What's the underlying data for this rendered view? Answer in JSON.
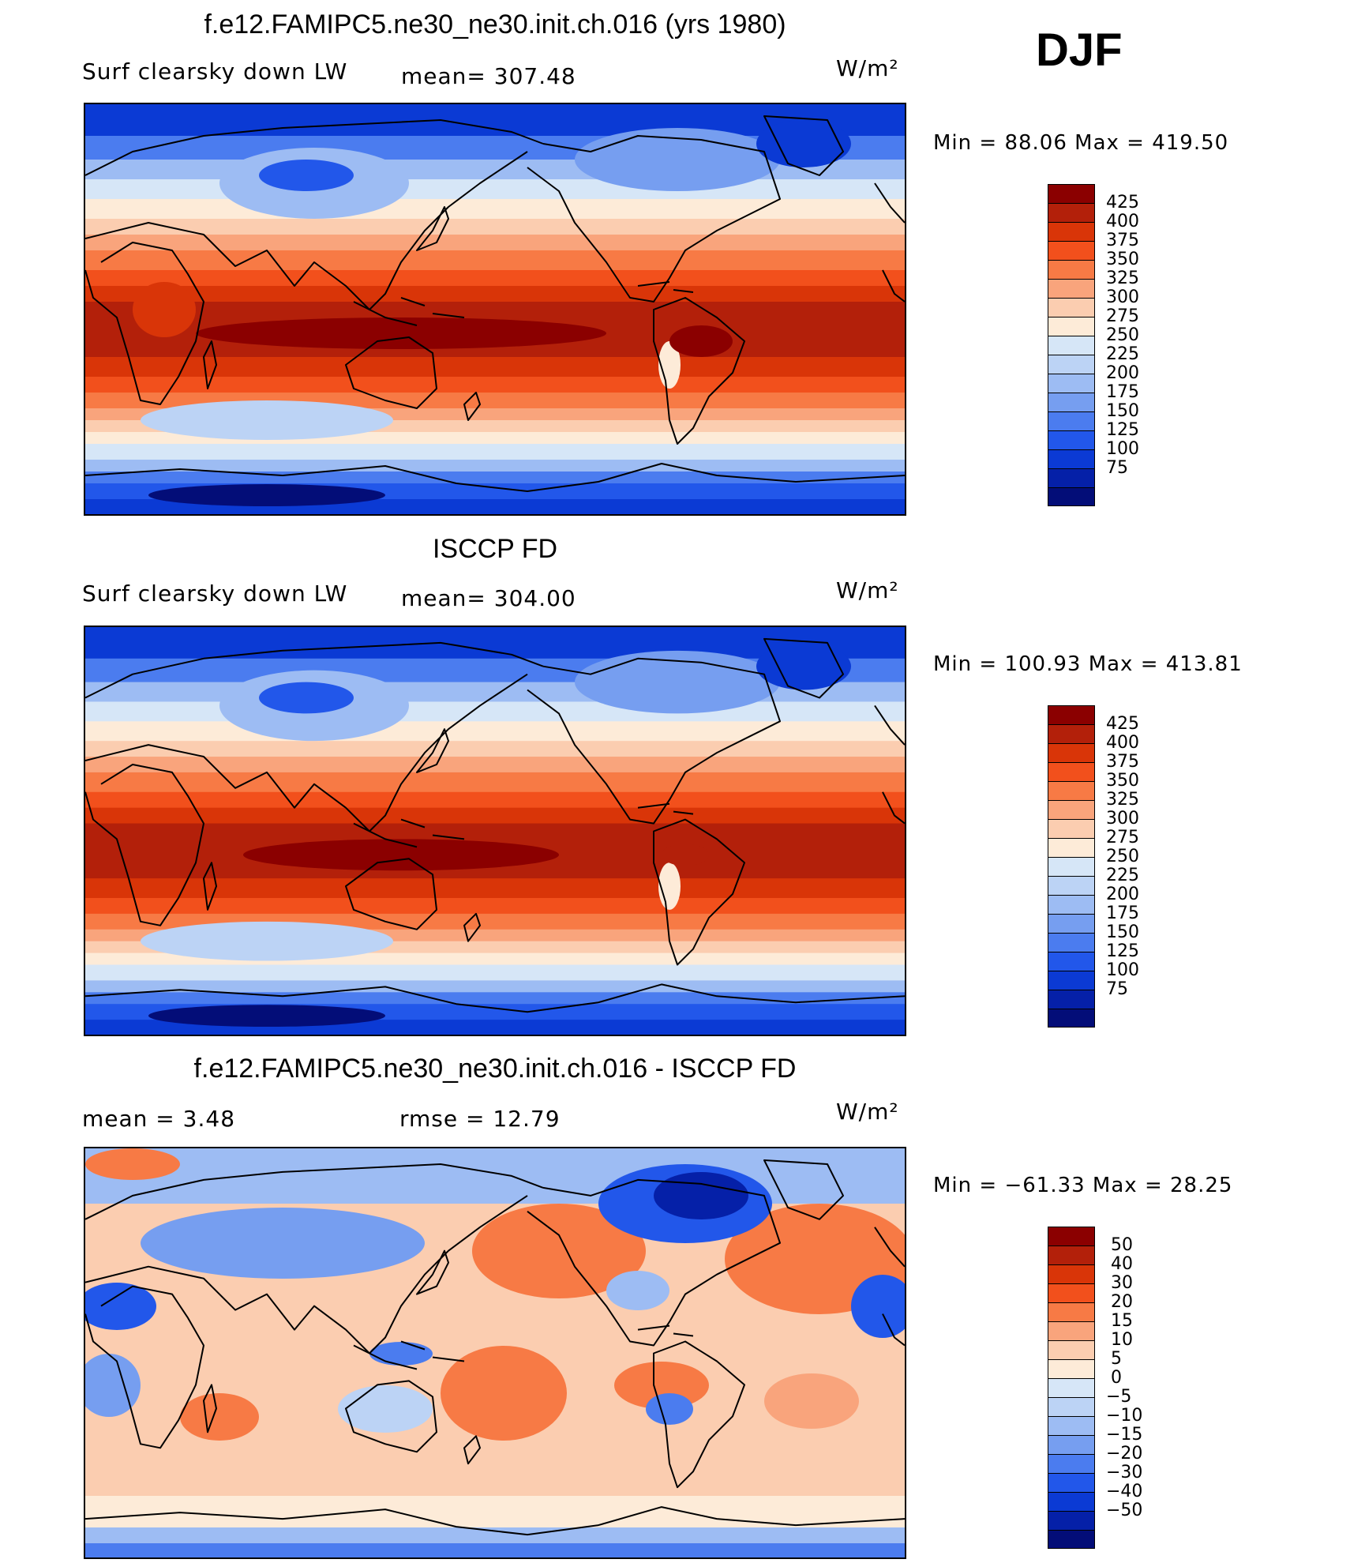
{
  "season": "DJF",
  "panels": [
    {
      "id": "model",
      "title": "f.e12.FAMIPC5.ne30_ne30.init.ch.016 (yrs 1980)",
      "left_label": "Surf clearsky down LW",
      "center_label": "mean= 307.48",
      "units": "W/m²",
      "minmax": "Min =   88.06 Max = 419.50",
      "palette": "abs"
    },
    {
      "id": "obs",
      "title": "ISCCP FD",
      "left_label": "Surf clearsky down LW",
      "center_label": "mean= 304.00",
      "units": "W/m²",
      "minmax": "Min = 100.93 Max = 413.81",
      "palette": "abs"
    },
    {
      "id": "diff",
      "title": "f.e12.FAMIPC5.ne30_ne30.init.ch.016 - ISCCP FD",
      "left_label": "mean =    3.48",
      "center_label": "rmse =    12.79",
      "units": "W/m²",
      "minmax": "Min = −61.33 Max =   28.25",
      "palette": "diff"
    }
  ],
  "chart_data": [
    {
      "type": "heatmap",
      "title": "f.e12.FAMIPC5.ne30_ne30.init.ch.016 (yrs 1980)",
      "variable": "Surf clearsky down LW",
      "units": "W/m2",
      "mean": 307.48,
      "min": 88.06,
      "max": 419.5,
      "colorbar_levels": [
        75,
        100,
        125,
        150,
        175,
        200,
        225,
        250,
        275,
        300,
        325,
        350,
        375,
        400,
        425
      ]
    },
    {
      "type": "heatmap",
      "title": "ISCCP FD",
      "variable": "Surf clearsky down LW",
      "units": "W/m2",
      "mean": 304.0,
      "min": 100.93,
      "max": 413.81,
      "colorbar_levels": [
        75,
        100,
        125,
        150,
        175,
        200,
        225,
        250,
        275,
        300,
        325,
        350,
        375,
        400,
        425
      ]
    },
    {
      "type": "heatmap",
      "title": "f.e12.FAMIPC5.ne30_ne30.init.ch.016 - ISCCP FD",
      "units": "W/m2",
      "mean": 3.48,
      "rmse": 12.79,
      "min": -61.33,
      "max": 28.25,
      "colorbar_levels": [
        -50,
        -40,
        -30,
        -20,
        -15,
        -10,
        -5,
        0,
        5,
        10,
        15,
        20,
        30,
        40,
        50
      ]
    }
  ],
  "colorbars": {
    "abs_labels": [
      "425",
      "400",
      "375",
      "350",
      "325",
      "300",
      "275",
      "250",
      "225",
      "200",
      "175",
      "150",
      "125",
      "100",
      "75"
    ],
    "diff_labels": [
      "50",
      "40",
      "30",
      "20",
      "15",
      "10",
      "5",
      "0",
      "−5",
      "−10",
      "−15",
      "−20",
      "−30",
      "−40",
      "−50"
    ],
    "colors": [
      "#8b0000",
      "#b3200a",
      "#d93508",
      "#f2501c",
      "#f77a45",
      "#f9a47c",
      "#fbcdb0",
      "#fdebd8",
      "#d6e6f7",
      "#bcd3f5",
      "#9dbcf3",
      "#769ef0",
      "#4b7cef",
      "#2257ea",
      "#0b3ad4",
      "#0520a8",
      "#030d78"
    ]
  }
}
